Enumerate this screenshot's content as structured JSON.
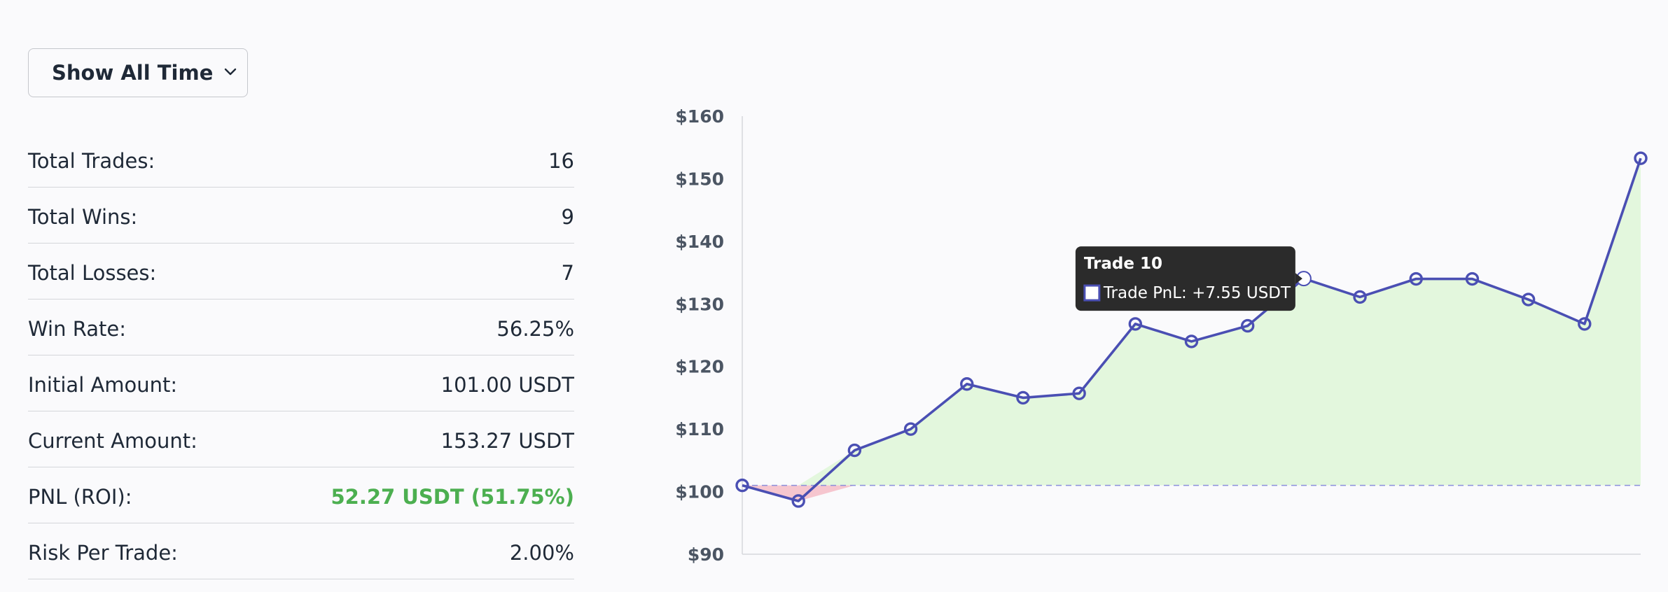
{
  "filter": {
    "selected": "Show All Time"
  },
  "stats": [
    {
      "label": "Total Trades:",
      "value": "16"
    },
    {
      "label": "Total Wins:",
      "value": "9"
    },
    {
      "label": "Total Losses:",
      "value": "7"
    },
    {
      "label": "Win Rate:",
      "value": "56.25%"
    },
    {
      "label": "Initial Amount:",
      "value": "101.00 USDT"
    },
    {
      "label": "Current Amount:",
      "value": "153.27 USDT"
    },
    {
      "label": "PNL (ROI):",
      "value": "52.27 USDT (51.75%)"
    },
    {
      "label": "Risk Per Trade:",
      "value": "2.00%"
    }
  ],
  "colors": {
    "line": "#4a4fb3",
    "fill_profit": "#e3f7dd",
    "fill_loss": "#f6c6cf",
    "baseline": "#8a8fdc",
    "pnl_positive": "#4caf50",
    "tooltip_bg": "#2b2b2b"
  },
  "tooltip": {
    "title": "Trade 10",
    "text": "Trade PnL: +7.55 USDT",
    "index": 10
  },
  "chart_data": {
    "type": "area",
    "x": [
      0,
      1,
      2,
      3,
      4,
      5,
      6,
      7,
      8,
      9,
      10,
      11,
      12,
      13,
      14,
      15,
      16
    ],
    "series": [
      {
        "values": [
          101.0,
          98.5,
          106.6,
          110.0,
          117.2,
          115.0,
          115.7,
          126.8,
          124.0,
          126.5,
          134.05,
          131.1,
          134.0,
          134.0,
          130.7,
          126.8,
          153.27
        ]
      }
    ],
    "baseline": 101.0,
    "ylim": [
      90,
      160
    ],
    "yticks": [
      90,
      100,
      110,
      120,
      130,
      140,
      150,
      160
    ],
    "ytick_labels": [
      "$90",
      "$100",
      "$110",
      "$120",
      "$130",
      "$140",
      "$150",
      "$160"
    ],
    "xlabel": "",
    "ylabel": "",
    "grid": false,
    "legend": "none"
  }
}
